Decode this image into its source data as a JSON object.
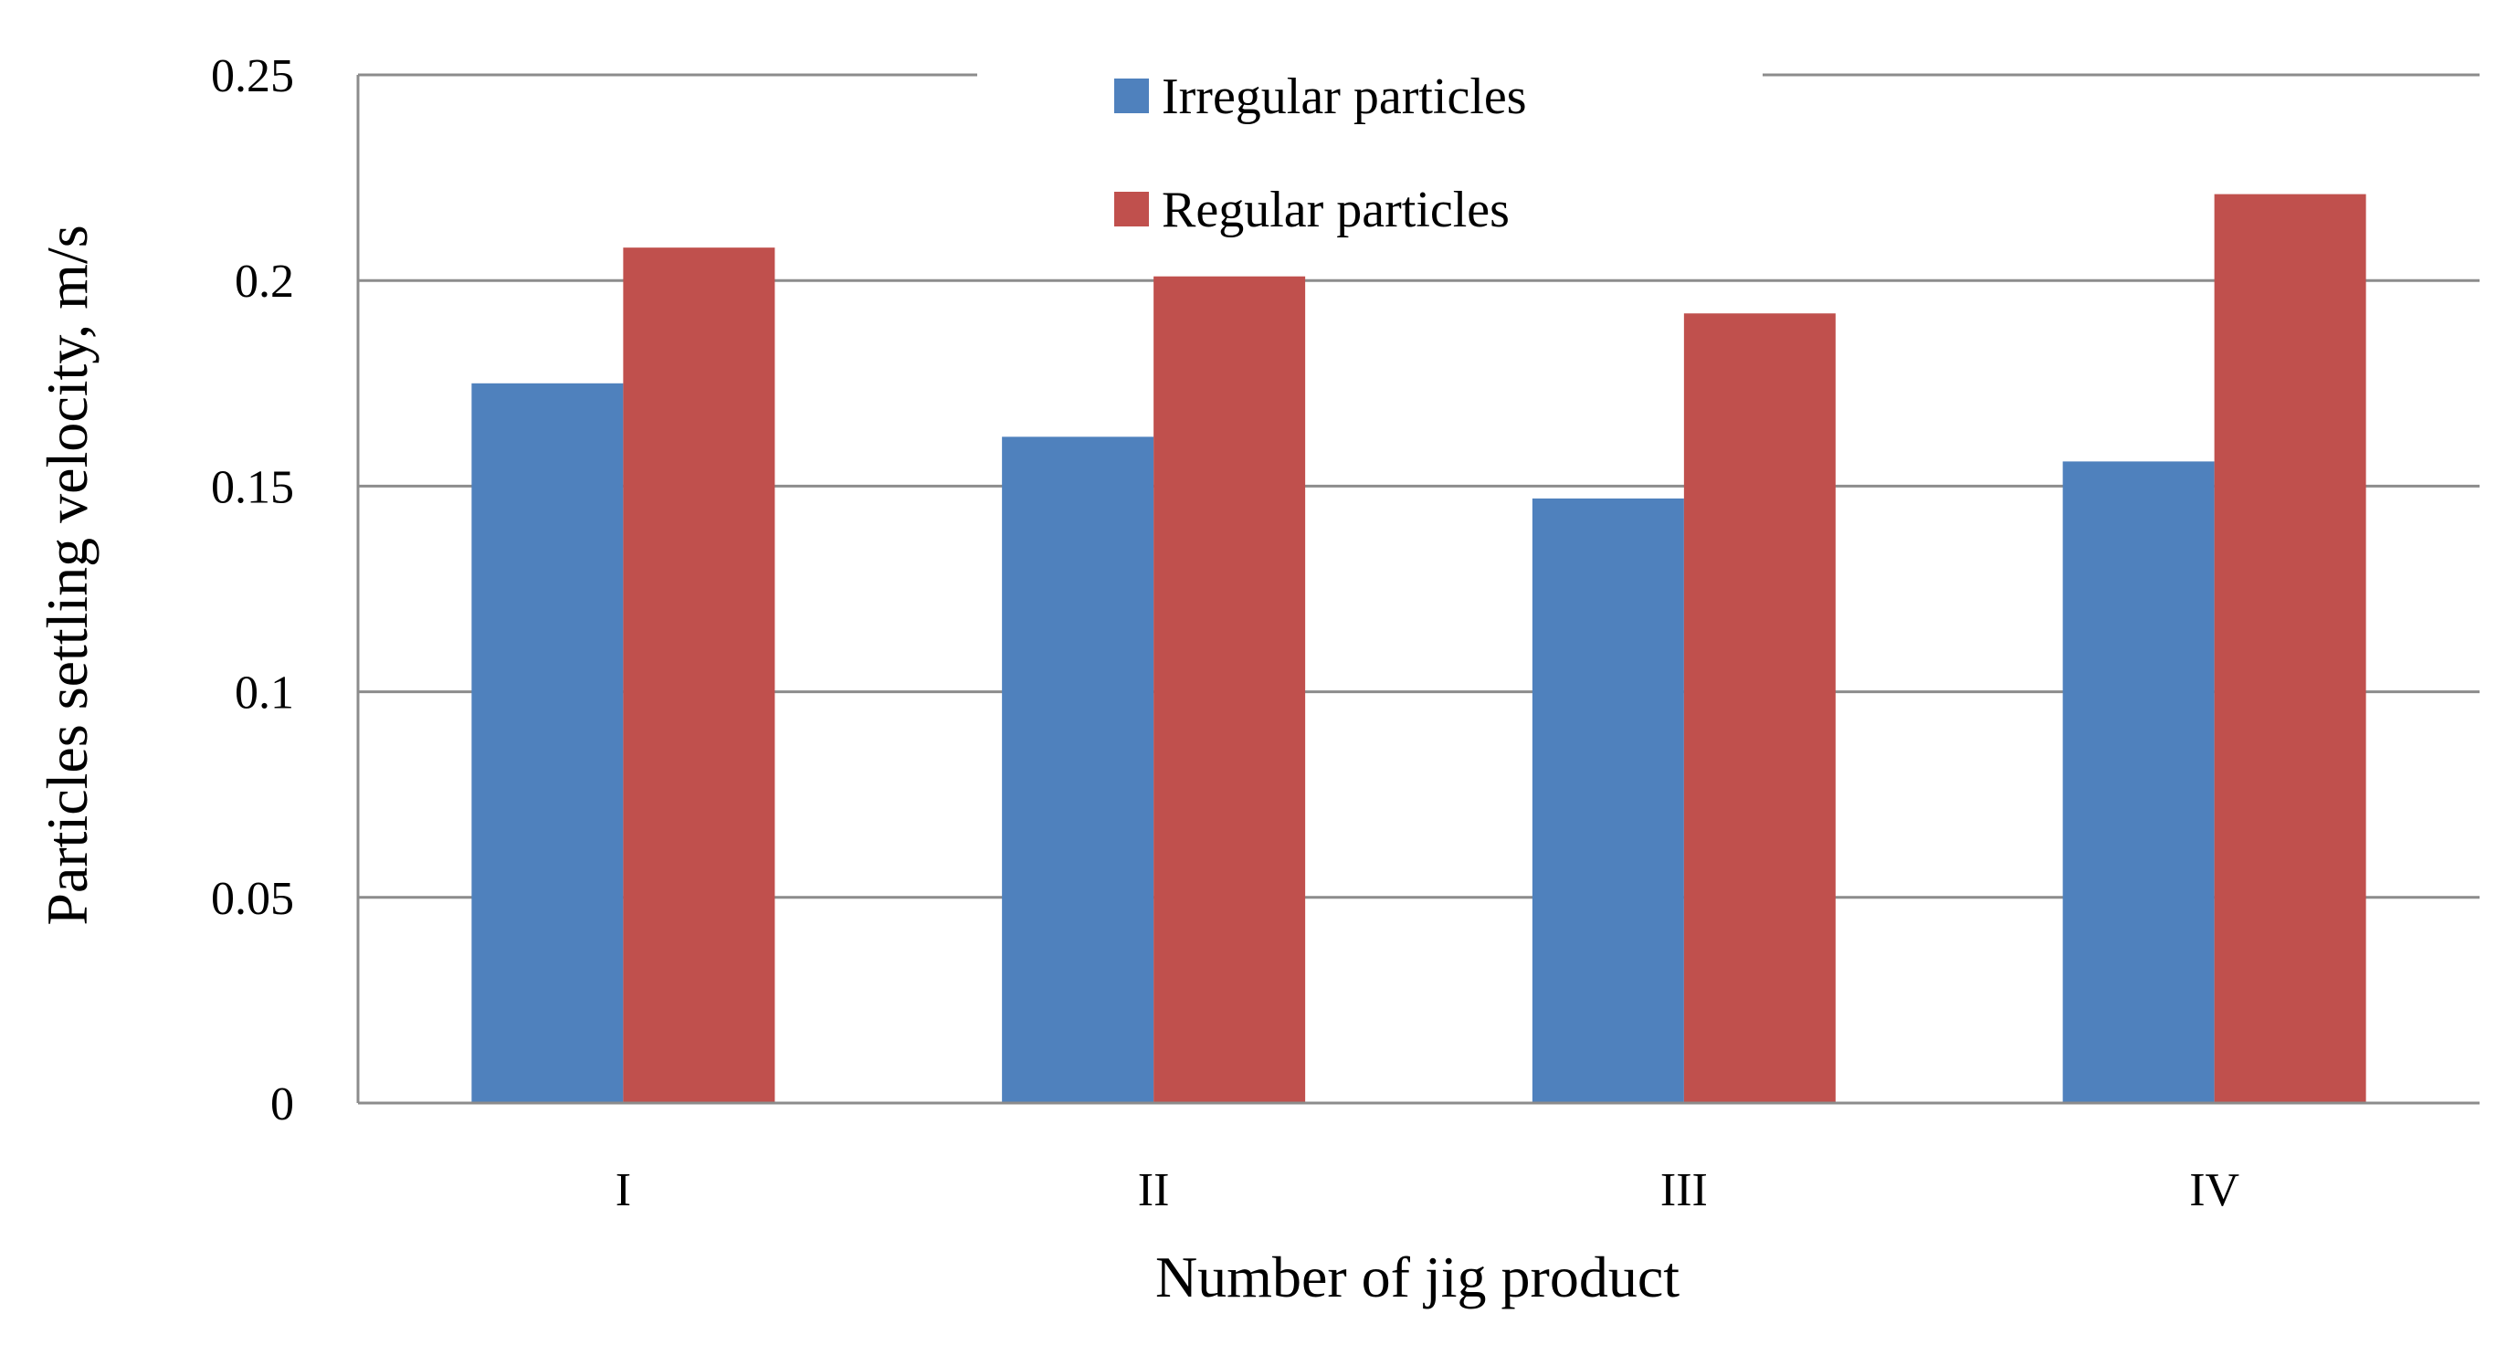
{
  "chart_data": {
    "type": "bar",
    "categories": [
      "I",
      "II",
      "III",
      "IV"
    ],
    "series": [
      {
        "name": "Irregular particles",
        "values": [
          0.175,
          0.162,
          0.147,
          0.156
        ],
        "color": "#4f81bd"
      },
      {
        "name": "Regular particles",
        "values": [
          0.208,
          0.201,
          0.192,
          0.221
        ],
        "color": "#c0504d"
      }
    ],
    "xlabel": "Number of jig product",
    "ylabel": "Particles settling velocity, m/s",
    "ylim": [
      0,
      0.25
    ],
    "yticks": [
      "0",
      "0.05",
      "0.1",
      "0.15",
      "0.2",
      "0.25"
    ],
    "grid": true,
    "legend_position": "top-center"
  }
}
